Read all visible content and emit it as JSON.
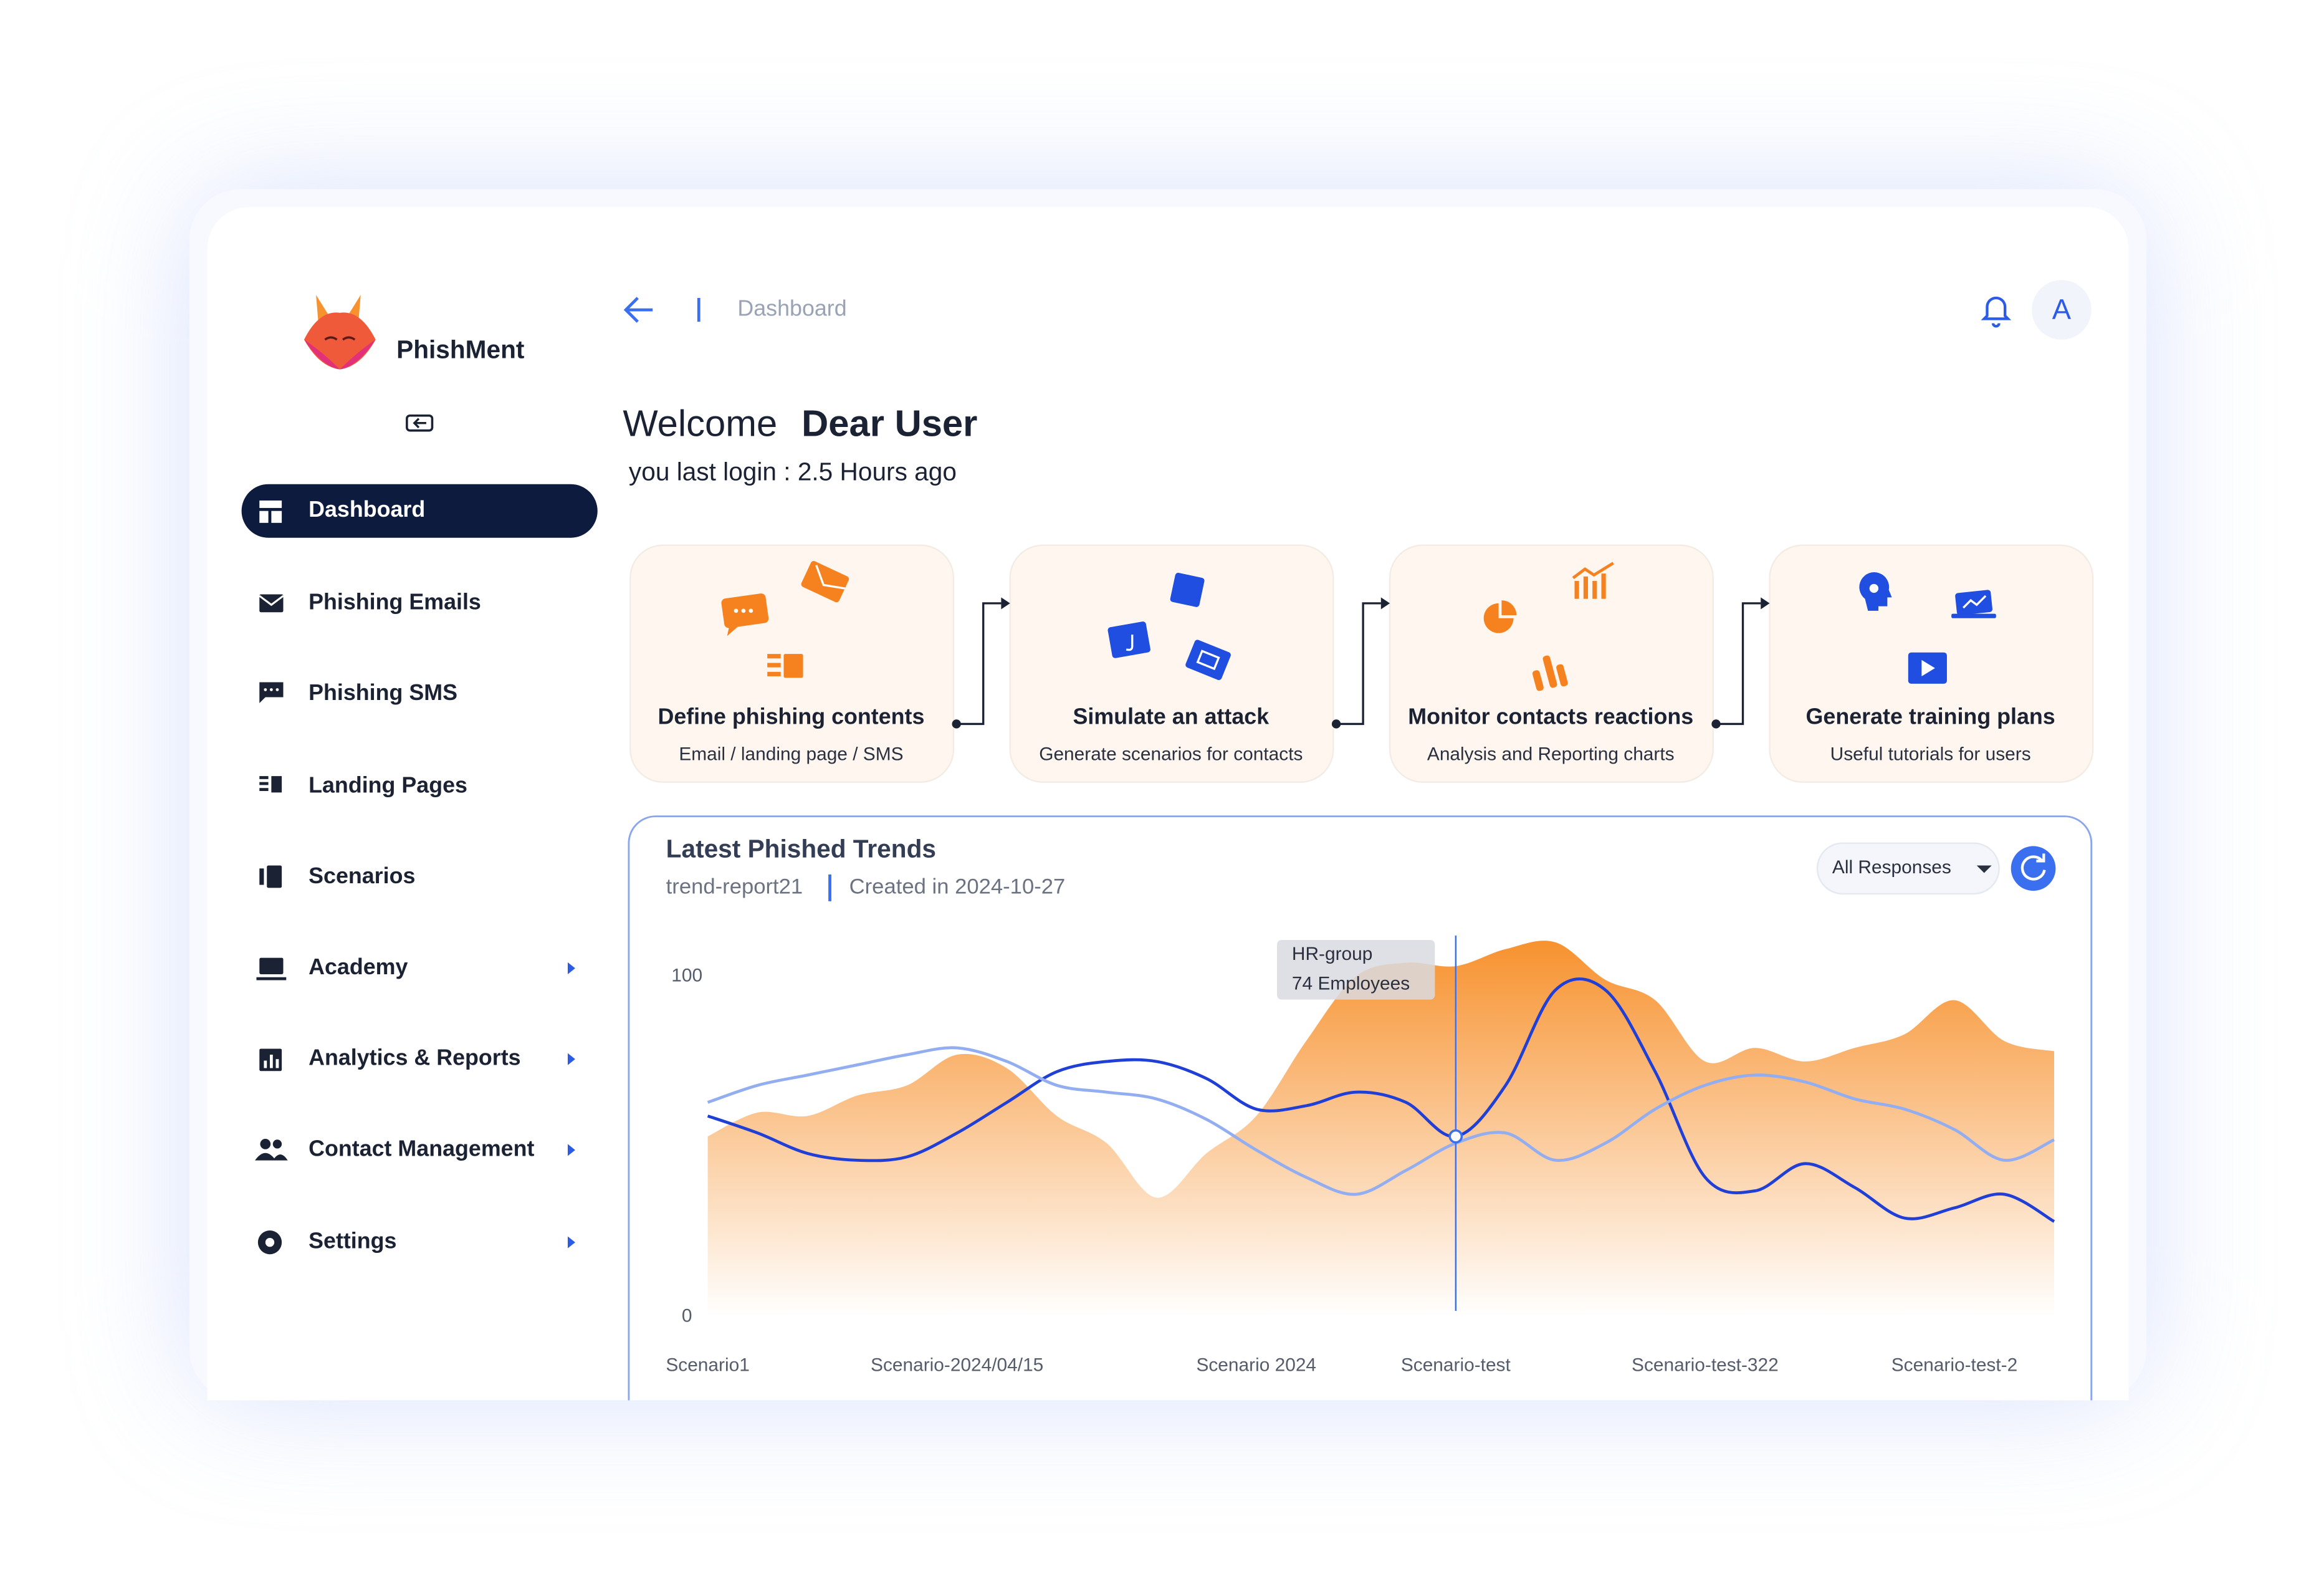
{
  "brand": {
    "name": "PhishMent"
  },
  "nav": [
    "Dashboard",
    "Phishing Emails",
    "Phishing SMS",
    "Landing Pages",
    "Scenarios",
    "Academy",
    "Analytics & Reports",
    "Contact Management",
    "Settings"
  ],
  "header": {
    "breadcrumb": "Dashboard",
    "avatar": "A"
  },
  "welcome": {
    "greeting": "Welcome",
    "name": "Dear User",
    "last_login": "you last login : 2.5 Hours ago"
  },
  "steps": [
    {
      "title": "Define phishing contents",
      "subtitle": "Email / landing page / SMS"
    },
    {
      "title": "Simulate an attack",
      "subtitle": "Generate scenarios for contacts"
    },
    {
      "title": "Monitor contacts reactions",
      "subtitle": "Analysis and Reporting charts"
    },
    {
      "title": "Generate training plans",
      "subtitle": "Useful tutorials for users"
    }
  ],
  "panel": {
    "title": "Latest Phished Trends",
    "report": "trend-report21",
    "created": "Created in 2024-10-27",
    "filter": "All Responses"
  },
  "chart_data": {
    "type": "line",
    "categories": [
      "Scenario1",
      null,
      null,
      null,
      null,
      "Scenario-2024/04/15",
      null,
      null,
      null,
      null,
      null,
      "Scenario 2024",
      null,
      null,
      null,
      "Scenario-test",
      null,
      null,
      null,
      null,
      "Scenario-test-322",
      null,
      null,
      null,
      null,
      "Scenario-test-2",
      null,
      null
    ],
    "series": [
      {
        "type": "area",
        "color": "#f7922f",
        "values": [
          53,
          60,
          59,
          65,
          68,
          77,
          73,
          59,
          51,
          35,
          48,
          59,
          81,
          100,
          104,
          103,
          108,
          110,
          99,
          93,
          75,
          79,
          75,
          79,
          83,
          93,
          81,
          78
        ]
      },
      {
        "type": "line",
        "color": "#1f3fd6",
        "values": [
          59,
          54,
          48,
          46,
          47,
          54,
          63,
          72,
          75,
          75,
          70,
          61,
          62,
          66,
          63,
          53,
          68,
          96,
          96,
          72,
          41,
          37,
          45,
          38,
          29,
          32,
          36,
          28
        ]
      },
      {
        "type": "line",
        "color": "#93aef0",
        "values": [
          63,
          68,
          71,
          74,
          77,
          79,
          75,
          68,
          66,
          64,
          58,
          49,
          41,
          36,
          43,
          51,
          54,
          46,
          51,
          61,
          68,
          71,
          69,
          64,
          61,
          55,
          46,
          52
        ]
      }
    ],
    "ylim": [
      0,
      112
    ],
    "yticks": [
      0,
      100
    ],
    "grid": false,
    "annotations": [
      {
        "title": "HR-group",
        "text": "74 Employees"
      }
    ]
  }
}
